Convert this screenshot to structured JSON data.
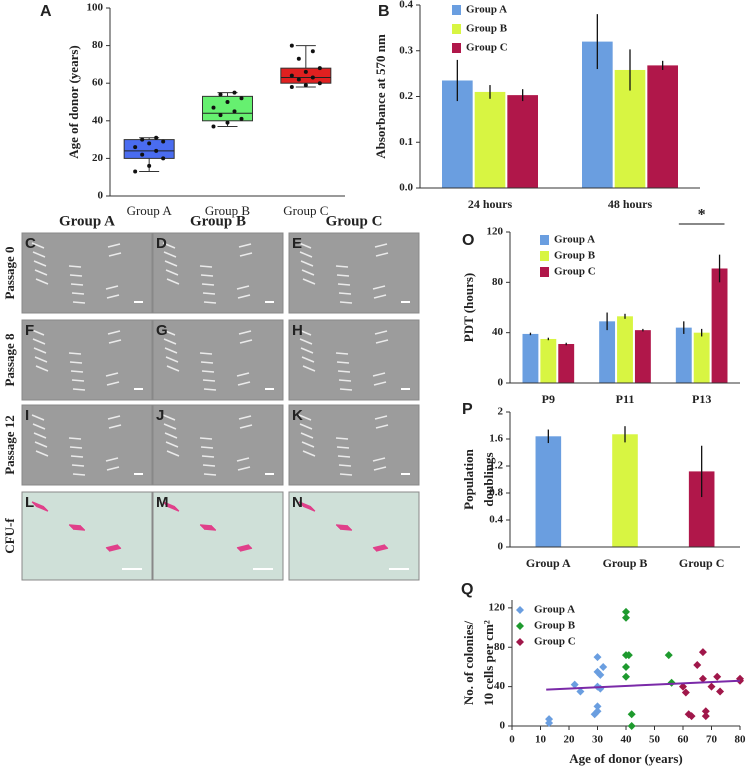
{
  "chart_data": [
    {
      "type": "box",
      "panel": "A",
      "ylabel": "Age of donor (years)",
      "categories": [
        "Group A",
        "Group B",
        "Group C"
      ],
      "colors": [
        "#4a6cf0",
        "#66f070",
        "#e02020"
      ],
      "boxes": [
        {
          "min": 13,
          "q1": 20,
          "median": 24,
          "q3": 30,
          "max": 31
        },
        {
          "min": 37,
          "q1": 40,
          "median": 44,
          "q3": 53,
          "max": 55
        },
        {
          "min": 58,
          "q1": 60,
          "median": 63,
          "q3": 68,
          "max": 80
        }
      ],
      "points": [
        [
          13,
          16,
          20,
          22,
          24,
          26,
          28,
          29,
          30,
          31
        ],
        [
          37,
          39,
          41,
          43,
          45,
          47,
          50,
          52,
          54,
          55
        ],
        [
          58,
          59,
          60,
          62,
          63,
          64,
          66,
          68,
          73,
          77,
          80
        ]
      ],
      "ylim": [
        0,
        100
      ],
      "yticks": [
        0,
        20,
        40,
        60,
        80,
        100
      ]
    },
    {
      "type": "bar",
      "panel": "B",
      "ylabel": "Absorbance at 570 nm",
      "categories": [
        "24 hours",
        "48 hours"
      ],
      "series": [
        {
          "name": "Group A",
          "color": "#6a9ee0",
          "values": [
            0.235,
            0.32
          ],
          "errors": [
            0.045,
            0.06
          ]
        },
        {
          "name": "Group B",
          "color": "#d8f542",
          "values": [
            0.21,
            0.258
          ],
          "errors": [
            0.015,
            0.045
          ]
        },
        {
          "name": "Group C",
          "color": "#b0174a",
          "values": [
            0.203,
            0.268
          ],
          "errors": [
            0.013,
            0.01
          ]
        }
      ],
      "ylim": [
        0,
        0.4
      ],
      "yticks": [
        {
          "value": 0,
          "label": "0.0"
        },
        0.1,
        0.2,
        0.3,
        0.4
      ]
    },
    {
      "type": "bar",
      "panel": "O",
      "ylabel": "PDT (hours)",
      "annotation": "*",
      "categories": [
        "P9",
        "P11",
        "P13"
      ],
      "series": [
        {
          "name": "Group A",
          "color": "#6a9ee0",
          "values": [
            39,
            49,
            44
          ],
          "errors": [
            1,
            7,
            5
          ]
        },
        {
          "name": "Group B",
          "color": "#d8f542",
          "values": [
            35,
            53,
            40
          ],
          "errors": [
            1,
            2,
            3
          ]
        },
        {
          "name": "Group C",
          "color": "#b0174a",
          "values": [
            31,
            42,
            91
          ],
          "errors": [
            1,
            1,
            11
          ]
        }
      ],
      "ylim": [
        0,
        120
      ],
      "yticks": [
        0,
        40,
        80,
        120
      ]
    },
    {
      "type": "bar",
      "panel": "P",
      "ylabel": [
        "Population",
        "doublings"
      ],
      "categories": [
        "Group A",
        "Group B",
        "Group C"
      ],
      "colors": [
        "#6a9ee0",
        "#d8f542",
        "#b0174a"
      ],
      "values": [
        1.64,
        1.67,
        1.12
      ],
      "errors": [
        0.1,
        0.12,
        0.38
      ],
      "ylim": [
        0,
        2
      ],
      "yticks": [
        0,
        0.4,
        0.8,
        1.2,
        1.6,
        2
      ]
    },
    {
      "type": "scatter",
      "panel": "Q",
      "ylabel": [
        "No. of colonies/",
        "10 cells per cm²"
      ],
      "xlabel": "Age of donor (years)",
      "series": [
        {
          "name": "Group A",
          "color": "#6a9ee0",
          "x": [
            13,
            13,
            22,
            24,
            30,
            30,
            31,
            30,
            31,
            30,
            30,
            29,
            32
          ],
          "values": [
            3,
            7,
            42,
            35,
            70,
            55,
            52,
            40,
            38,
            20,
            15,
            12,
            60
          ]
        },
        {
          "name": "Group B",
          "color": "#1e9a2e",
          "x": [
            40,
            40,
            40,
            41,
            40,
            40,
            42,
            42,
            55,
            56
          ],
          "values": [
            116,
            110,
            72,
            72,
            60,
            50,
            12,
            0,
            72,
            44
          ]
        },
        {
          "name": "Group C",
          "color": "#a0174a",
          "x": [
            60,
            61,
            62,
            63,
            65,
            67,
            67,
            68,
            68,
            70,
            72,
            73,
            80,
            80
          ],
          "values": [
            40,
            34,
            12,
            10,
            62,
            75,
            48,
            15,
            10,
            40,
            50,
            35,
            48,
            46
          ]
        }
      ],
      "trendline": {
        "color": "#7a2aa8",
        "x": [
          12,
          80
        ],
        "y": [
          37,
          46
        ]
      },
      "xlim": [
        0,
        80
      ],
      "xticks": [
        0,
        10,
        20,
        30,
        40,
        50,
        60,
        70,
        80
      ],
      "ylim": [
        0,
        128
      ],
      "yticks": [
        0,
        40,
        80,
        120
      ]
    }
  ],
  "image_grid": {
    "columns": [
      "Group A",
      "Group B",
      "Group C"
    ],
    "rows": [
      "Passage 0",
      "Passage 8",
      "Passage 12",
      "CFU-f"
    ],
    "panels": [
      [
        "C",
        "D",
        "E"
      ],
      [
        "F",
        "G",
        "H"
      ],
      [
        "I",
        "J",
        "K"
      ],
      [
        "L",
        "M",
        "N"
      ]
    ]
  }
}
